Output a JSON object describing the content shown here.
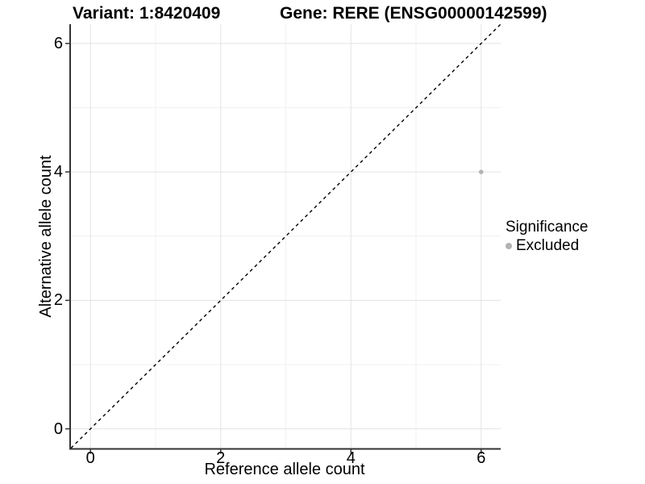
{
  "figure": {
    "title_left": "Variant: 1:8420409",
    "title_right": "Gene: RERE (ENSG00000142599)"
  },
  "chart_data": {
    "type": "scatter",
    "title": "Variant: 1:8420409   Gene: RERE (ENSG00000142599)",
    "xlabel": "Reference allele count",
    "ylabel": "Alternative allele count",
    "xlim": [
      -0.3,
      6.3
    ],
    "ylim": [
      -0.3,
      6.3
    ],
    "xticks": [
      0,
      2,
      4,
      6
    ],
    "yticks": [
      0,
      2,
      4,
      6
    ],
    "minor_ticks_x": [
      1,
      3,
      5
    ],
    "minor_ticks_y": [
      1,
      3,
      5
    ],
    "grid": "major and minor, light gray on white",
    "reference_line": {
      "kind": "identity",
      "slope": 1,
      "intercept": 0,
      "style": "dashed",
      "color": "#000000"
    },
    "series": [
      {
        "name": "Excluded",
        "color": "#b3b3b3",
        "points": [
          {
            "x": 6,
            "y": 4
          }
        ]
      }
    ],
    "legend": {
      "title": "Significance",
      "position": "right",
      "items": [
        {
          "label": "Excluded",
          "color": "#b3b3b3",
          "marker": "circle"
        }
      ]
    },
    "colors": {
      "grid_major": "#e3e3e3",
      "grid_minor": "#f0f0f0",
      "axis": "#333333",
      "text": "#000000",
      "background": "#ffffff"
    }
  }
}
